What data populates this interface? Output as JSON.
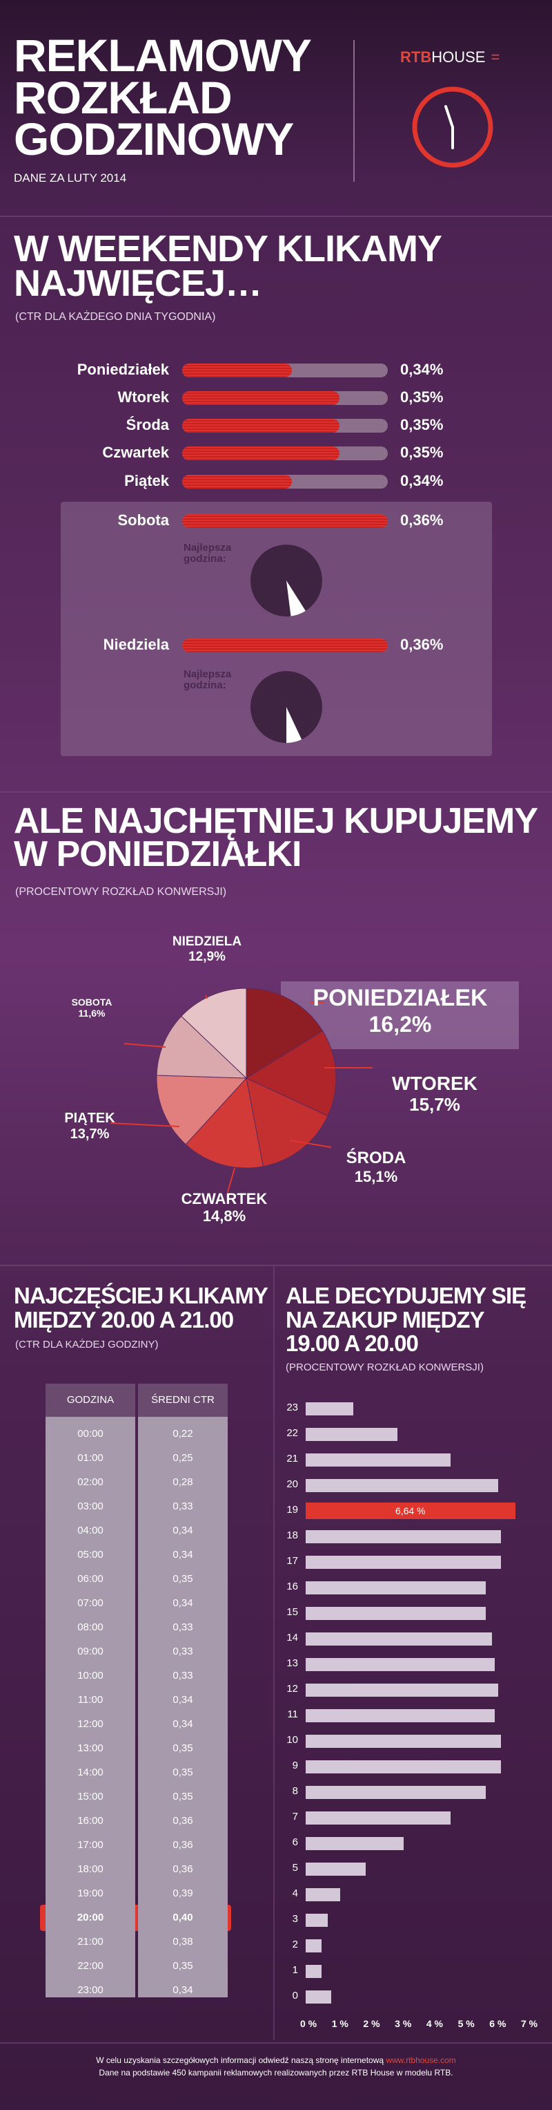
{
  "header": {
    "title_lines": [
      "REKLAMOWY",
      "ROZKŁAD",
      "GODZINOWY"
    ],
    "date": "DANE ZA LUTY 2014",
    "logo_rtb": "RTB",
    "logo_house": "HOUSE",
    "logo_menu": "="
  },
  "section1": {
    "title_lines": [
      "W WEEKENDY KLIKAMY",
      "NAJWIĘCEJ…"
    ],
    "subtitle": "(CTR DLA KAŻDEGO DNIA TYGODNIA)",
    "best_hour_label_1": "Najlepsza",
    "best_hour_label_2": "godzina:"
  },
  "section2": {
    "title_lines": [
      "ALE NAJCHĘTNIEJ KUPUJEMY",
      "W PONIEDZIAŁKI"
    ],
    "subtitle": "(PROCENTOWY ROZKŁAD KONWERSJI)"
  },
  "section3": {
    "title_lines": [
      "NAJCZĘŚCIEJ KLIKAMY",
      "MIĘDZY 20.00 A 21.00"
    ],
    "subtitle": "(CTR DLA KAŻDEJ GODZINY)",
    "col_hour": "GODZINA",
    "col_ctr": "ŚREDNI CTR"
  },
  "section4": {
    "title_lines": [
      "ALE DECYDUJEMY SIĘ",
      "NA ZAKUP MIĘDZY",
      "19.00 A 20.00"
    ],
    "subtitle": "(PROCENTOWY ROZKŁAD KONWERSJI)"
  },
  "footer": {
    "line1_pre": "W celu uzyskania szczegółowych informacji odwiedź naszą stronę internetową",
    "link": "www.rtbhouse.com",
    "line2": "Dane na podstawie 450 kampanii reklamowych realizowanych przez RTB House w modelu RTB."
  },
  "colors": {
    "accent": "#e0362d",
    "bar_bg": "#8b6f8b",
    "pie_dark": "#3f2442"
  },
  "chart_data": [
    {
      "type": "bar",
      "orientation": "horizontal",
      "categories": [
        "Poniedziałek",
        "Wtorek",
        "Środa",
        "Czwartek",
        "Piątek",
        "Sobota",
        "Niedziela"
      ],
      "values": [
        0.34,
        0.35,
        0.35,
        0.35,
        0.34,
        0.36,
        0.36
      ],
      "value_labels": [
        "0,34%",
        "0,35%",
        "0,35%",
        "0,35%",
        "0,34%",
        "0,36%",
        "0,36%"
      ],
      "xlim": [
        0.33,
        0.36
      ],
      "best_hour_clock_fraction": {
        "Sobota": 0.83,
        "Niedziela": 0.85
      }
    },
    {
      "type": "pie",
      "categories": [
        "PONIEDZIAŁEK",
        "WTOREK",
        "ŚRODA",
        "CZWARTEK",
        "PIĄTEK",
        "SOBOTA",
        "NIEDZIELA"
      ],
      "values": [
        16.2,
        15.7,
        15.1,
        14.8,
        13.7,
        11.6,
        12.9
      ],
      "value_labels": [
        "16,2%",
        "15,7%",
        "15,1%",
        "14,8%",
        "13,7%",
        "11,6%",
        "12,9%"
      ],
      "colors": [
        "#8f1e24",
        "#b0252a",
        "#c42f30",
        "#d23a38",
        "#e07f7d",
        "#d9a9ad",
        "#e6c3c6"
      ]
    },
    {
      "type": "table",
      "columns": [
        "GODZINA",
        "ŚREDNI CTR"
      ],
      "rows": [
        [
          "00:00",
          "0,22"
        ],
        [
          "01:00",
          "0,25"
        ],
        [
          "02:00",
          "0,28"
        ],
        [
          "03:00",
          "0,33"
        ],
        [
          "04:00",
          "0,34"
        ],
        [
          "05:00",
          "0,34"
        ],
        [
          "06:00",
          "0,35"
        ],
        [
          "07:00",
          "0,34"
        ],
        [
          "08:00",
          "0,33"
        ],
        [
          "09:00",
          "0,33"
        ],
        [
          "10:00",
          "0,33"
        ],
        [
          "11:00",
          "0,34"
        ],
        [
          "12:00",
          "0,34"
        ],
        [
          "13:00",
          "0,35"
        ],
        [
          "14:00",
          "0,35"
        ],
        [
          "15:00",
          "0,35"
        ],
        [
          "16:00",
          "0,36"
        ],
        [
          "17:00",
          "0,36"
        ],
        [
          "18:00",
          "0,36"
        ],
        [
          "19:00",
          "0,39"
        ],
        [
          "20:00",
          "0,40"
        ],
        [
          "21:00",
          "0,38"
        ],
        [
          "22:00",
          "0,35"
        ],
        [
          "23:00",
          "0,34"
        ]
      ],
      "highlight_row": 20
    },
    {
      "type": "bar",
      "orientation": "horizontal",
      "categories": [
        "0",
        "1",
        "2",
        "3",
        "4",
        "5",
        "6",
        "7",
        "8",
        "9",
        "10",
        "11",
        "12",
        "13",
        "14",
        "15",
        "16",
        "17",
        "18",
        "19",
        "20",
        "21",
        "22",
        "23"
      ],
      "values": [
        0.8,
        0.5,
        0.5,
        0.7,
        1.1,
        1.9,
        3.1,
        4.6,
        5.7,
        6.2,
        6.2,
        6.0,
        6.1,
        6.0,
        5.9,
        5.7,
        5.7,
        6.2,
        6.2,
        6.64,
        6.1,
        4.6,
        2.9,
        1.5
      ],
      "highlight_label": "6,64 %",
      "highlight_index": 19,
      "xticks": [
        "0 %",
        "1 %",
        "2 %",
        "3 %",
        "4 %",
        "5 %",
        "6 %",
        "7 %"
      ],
      "xlim": [
        0,
        7
      ]
    }
  ]
}
